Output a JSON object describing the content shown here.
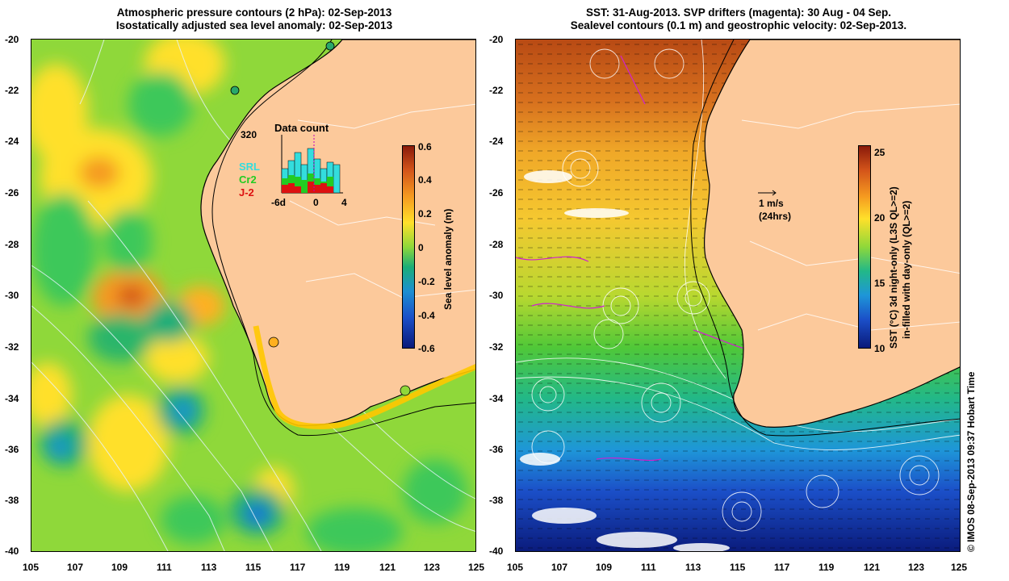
{
  "left_panel": {
    "title_line1": "Atmospheric pressure contours (2 hPa): 02-Sep-2013",
    "title_line2": "Isostatically adjusted sea level anomaly: 02-Sep-2013",
    "colorbar_label": "Sea level anomaly (m)",
    "colorbar_ticks": [
      "0.6",
      "0.4",
      "0.2",
      "0",
      "-0.2",
      "-0.4",
      "-0.6"
    ],
    "inset": {
      "title": "Data count",
      "max_label": "320",
      "series_labels": [
        "SRL",
        "Cr2",
        "J-2"
      ],
      "series_colors": [
        "#33dddd",
        "#22cc22",
        "#dd1111"
      ],
      "x_ticks": [
        "-6d",
        "0",
        "4"
      ]
    }
  },
  "right_panel": {
    "title_line1": "SST: 31-Aug-2013. SVP drifters (magenta): 30 Aug - 04 Sep.",
    "title_line2": "Sealevel contours (0.1 m) and geostrophic velocity: 02-Sep-2013.",
    "colorbar_label_line1": "SST (°C)  3d night-only (L3S QL>=2)",
    "colorbar_label_line2": "in-filled with day-only (QL>=2)",
    "colorbar_ticks": [
      "25",
      "20",
      "15",
      "10"
    ],
    "velocity_scale": "1 m/s",
    "velocity_period": "(24hrs)"
  },
  "y_axis_labels": [
    "-20",
    "-22",
    "-24",
    "-26",
    "-28",
    "-30",
    "-32",
    "-34",
    "-36",
    "-38",
    "-40"
  ],
  "x_axis_labels": [
    "105",
    "107",
    "109",
    "111",
    "113",
    "115",
    "117",
    "119",
    "121",
    "123",
    "125"
  ],
  "copyright": "© IMOS 08-Sep-2013 09:37 Hobart Time",
  "colors": {
    "land": "#fcc99b",
    "coast": "#000000"
  }
}
